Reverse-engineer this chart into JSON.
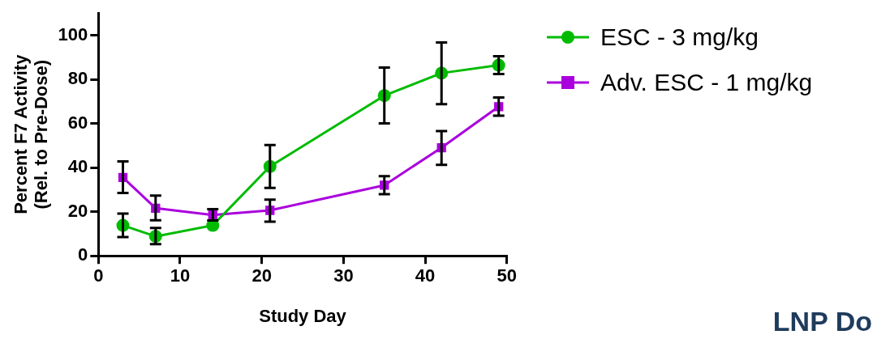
{
  "chart_data": {
    "type": "line",
    "xlabel": "Study Day",
    "ylabel": "Percent F7 Activity\n(Rel. to Pre-Dose)",
    "x": [
      3,
      7,
      14,
      21,
      35,
      42,
      49
    ],
    "xlim": [
      0,
      50
    ],
    "xticks": [
      0,
      10,
      20,
      30,
      40,
      50
    ],
    "ylim": [
      0,
      110
    ],
    "yticks": [
      0,
      20,
      40,
      60,
      80,
      100
    ],
    "grid": false,
    "legend": "top right",
    "line_style": "solid",
    "annotations": [
      "LNP Do"
    ],
    "series": [
      {
        "name": "ESC - 3 mg/kg",
        "color": "#00bb00",
        "marker": "circle",
        "values": [
          13.8,
          8.8,
          13.8,
          40.5,
          72.6,
          82.8,
          86.4
        ],
        "errors": [
          [
            8.5,
            19.1
          ],
          [
            5.3,
            12.6
          ],
          null,
          [
            30.8,
            50.2
          ],
          [
            60,
            85.3
          ],
          [
            68.7,
            96.7
          ],
          [
            82.4,
            90.5
          ]
        ]
      },
      {
        "name": "Adv. ESC - 1 mg/kg",
        "color": "#aa00dd",
        "marker": "square",
        "values": [
          35.5,
          21.6,
          18.5,
          20.6,
          32,
          49,
          67.6
        ],
        "errors": [
          [
            28.5,
            42.8
          ],
          [
            16.1,
            27.3
          ],
          [
            16,
            21.2
          ],
          [
            15.5,
            25.5
          ],
          [
            27.9,
            36.1
          ],
          [
            41.2,
            56.5
          ],
          [
            63.5,
            71.8
          ]
        ]
      }
    ]
  }
}
